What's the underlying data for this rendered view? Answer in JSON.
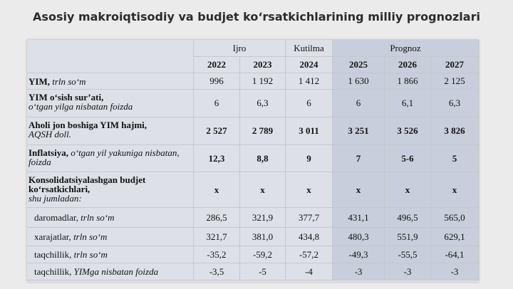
{
  "title": "Asosiy makroiqtisodiy va budjet ko‘rsatkichlarining milliy prognozlari",
  "table": {
    "groups": [
      {
        "label": "Ijro",
        "span": 2
      },
      {
        "label": "Kutilma",
        "span": 1
      },
      {
        "label": "Prognoz",
        "span": 3
      }
    ],
    "years": [
      "2022",
      "2023",
      "2024",
      "2025",
      "2026",
      "2027"
    ],
    "rows": [
      {
        "name": "YIM,",
        "unit": "trln so‘m",
        "values": [
          "996",
          "1 192",
          "1 412",
          "1 630",
          "1 866",
          "2 125"
        ]
      },
      {
        "name": "YIM o‘sish sur’ati,",
        "unit": "o‘tgan yilga nisbatan foizda",
        "values": [
          "6",
          "6,3",
          "6",
          "6",
          "6,1",
          "6,3"
        ]
      },
      {
        "name": "Aholi jon boshiga YIM hajmi,",
        "unit": "AQSH doll.",
        "values": [
          "2 527",
          "2 789",
          "3 011",
          "3 251",
          "3 526",
          "3 826"
        ]
      },
      {
        "name": "Inflatsiya,",
        "unit": "o‘tgan yil yakuniga nisbatan, foizda",
        "values": [
          "12,3",
          "8,8",
          "9",
          "7",
          "5-6",
          "5"
        ]
      },
      {
        "name": "Konsolidatsiyalashgan budjet ko‘rsatkichlari,",
        "unit": "shu jumladan:",
        "values": [
          "x",
          "x",
          "x",
          "x",
          "x",
          "x"
        ]
      },
      {
        "name": "daromadlar,",
        "unit": "trln so‘m",
        "values": [
          "286,5",
          "321,9",
          "377,7",
          "431,1",
          "496,5",
          "565,0"
        ]
      },
      {
        "name": "xarajatlar,",
        "unit": "trln so‘m",
        "values": [
          "321,7",
          "381,0",
          "434,8",
          "480,3",
          "551,9",
          "629,1"
        ]
      },
      {
        "name": "taqchillik,",
        "unit": "trln so‘m",
        "values": [
          "-35,2",
          "-59,2",
          "-57,2",
          "-49,3",
          "-55,5",
          "-64,1"
        ]
      },
      {
        "name": "taqchillik,",
        "unit": "YIMga nisbatan foizda",
        "values": [
          "-3,5",
          "-5",
          "-4",
          "-3",
          "-3",
          "-3"
        ]
      }
    ]
  }
}
